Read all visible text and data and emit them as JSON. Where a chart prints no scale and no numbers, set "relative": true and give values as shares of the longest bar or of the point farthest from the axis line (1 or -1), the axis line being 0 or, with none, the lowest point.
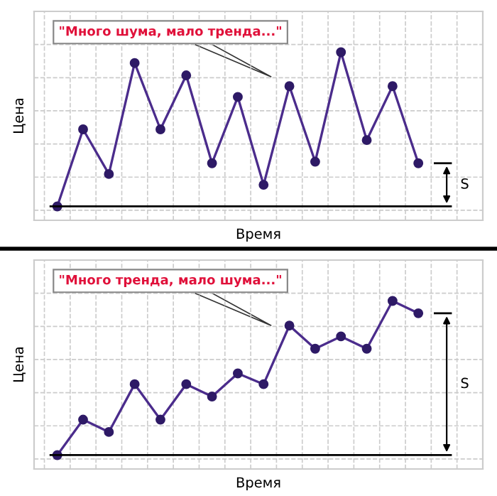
{
  "chart_data": [
    {
      "type": "line",
      "relative": true,
      "xlabel": "Время",
      "ylabel": "Цена",
      "categories": [
        null,
        null,
        null,
        null,
        null,
        null,
        null,
        null,
        null,
        null,
        null,
        null,
        null,
        null,
        null
      ],
      "series": [
        {
          "color": "#4b2c8c",
          "values": [
            0,
            0.5,
            0.21,
            0.93,
            0.5,
            0.85,
            0.28,
            0.71,
            0.14,
            0.78,
            0.29,
            1,
            0.43,
            0.78,
            0.28
          ]
        }
      ],
      "marker": "circle",
      "line_style": "solid",
      "grid": true,
      "legend": false,
      "tick_labels": false,
      "ref_lines": [
        {
          "axis": "y",
          "value": 0,
          "color": "#000000"
        }
      ],
      "annotations": [
        "\"Много шума, мало тренда...\"",
        "S"
      ]
    },
    {
      "type": "line",
      "relative": true,
      "xlabel": "Время",
      "ylabel": "Цена",
      "categories": [
        null,
        null,
        null,
        null,
        null,
        null,
        null,
        null,
        null,
        null,
        null,
        null,
        null,
        null,
        null
      ],
      "series": [
        {
          "color": "#4b2c8c",
          "values": [
            0,
            0.23,
            0.15,
            0.46,
            0.23,
            0.46,
            0.38,
            0.53,
            0.46,
            0.84,
            0.69,
            0.77,
            0.69,
            1,
            0.92
          ]
        }
      ],
      "marker": "circle",
      "line_style": "solid",
      "grid": true,
      "legend": false,
      "tick_labels": false,
      "ref_lines": [
        {
          "axis": "y",
          "value": 0,
          "color": "#000000"
        }
      ],
      "annotations": [
        "\"Много тренда, мало шума...\"",
        "S"
      ]
    }
  ]
}
